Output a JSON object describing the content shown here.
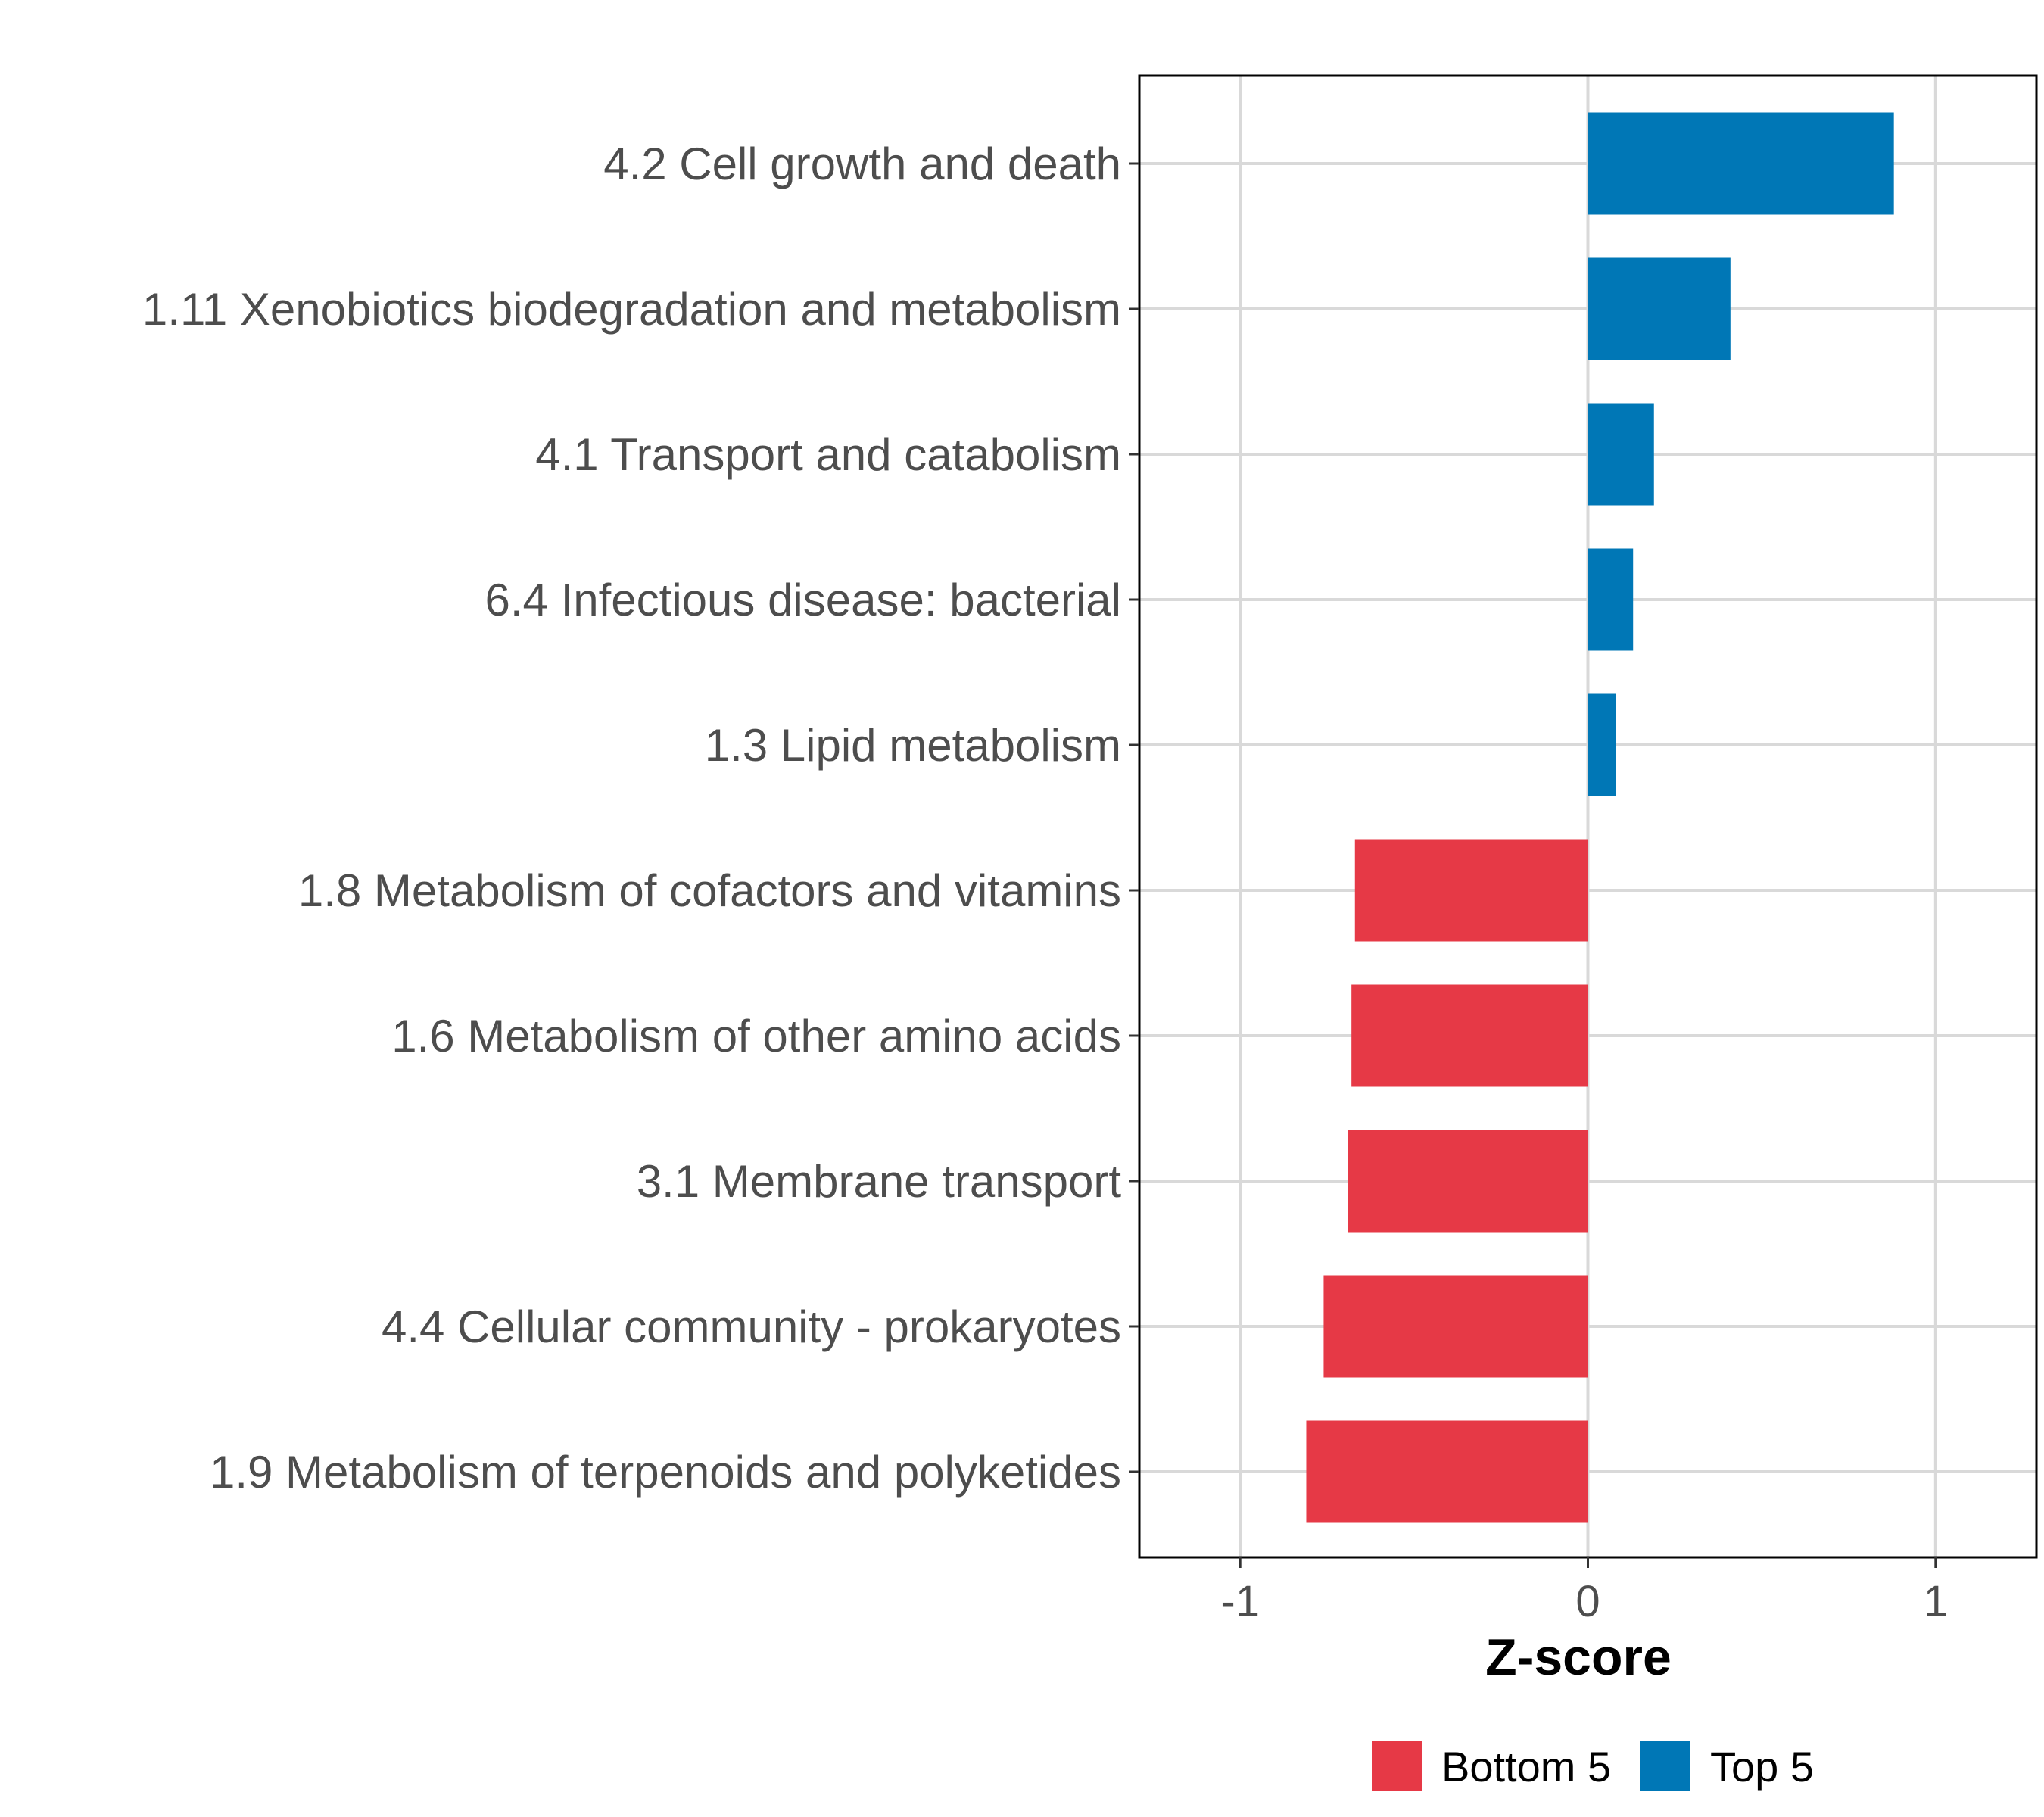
{
  "chart_data": {
    "type": "bar",
    "orientation": "horizontal",
    "title": "",
    "xlabel": "Z-score",
    "ylabel": "",
    "xlim": [
      -1.29,
      1.29
    ],
    "xticks": [
      -1,
      0,
      1
    ],
    "xtick_labels": [
      "-1",
      "0",
      "1"
    ],
    "grid": true,
    "legend_position": "bottom",
    "categories": [
      "4.2 Cell growth and death",
      "1.11 Xenobiotics biodegradation and metabolism",
      "4.1 Transport and catabolism",
      "6.4 Infectious disease: bacterial",
      "1.3 Lipid metabolism",
      "1.8 Metabolism of cofactors and vitamins",
      "1.6 Metabolism of other amino acids",
      "3.1 Membrane transport",
      "4.4 Cellular community - prokaryotes",
      "1.9 Metabolism of terpenoids and polyketides"
    ],
    "values": [
      0.88,
      0.41,
      0.19,
      0.13,
      0.08,
      -0.67,
      -0.68,
      -0.69,
      -0.76,
      -0.81
    ],
    "groups": [
      "Top 5",
      "Top 5",
      "Top 5",
      "Top 5",
      "Top 5",
      "Bottom 5",
      "Bottom 5",
      "Bottom 5",
      "Bottom 5",
      "Bottom 5"
    ],
    "legend": [
      {
        "label": "Bottom 5",
        "color": "#E63946"
      },
      {
        "label": "Top 5",
        "color": "#0077B6"
      }
    ]
  }
}
